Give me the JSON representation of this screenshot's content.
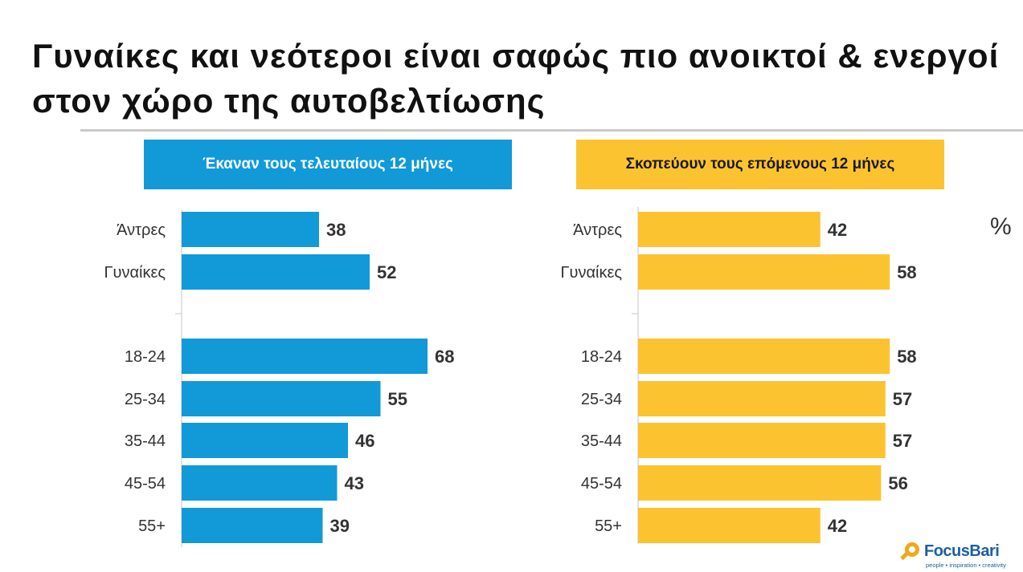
{
  "title": "Γυναίκες και νεότεροι είναι σαφώς πιο ανοικτοί & ενεργοί στον χώρο της αυτοβελτίωσης",
  "unit": "%",
  "logo": {
    "name": "FocusBari",
    "tagline": "people • inspiration • creativity"
  },
  "colors": {
    "left_bar": "#1299d8",
    "right_bar": "#fcc331",
    "text": "#333333"
  },
  "chart_data": [
    {
      "type": "bar",
      "orientation": "horizontal",
      "title": "Έκαναν τους τελευταίους 12 μήνες",
      "categories": [
        "Άντρες",
        "Γυναίκες",
        "",
        "18-24",
        "25-34",
        "35-44",
        "45-54",
        "55+"
      ],
      "values": [
        38,
        52,
        null,
        68,
        55,
        46,
        43,
        39
      ],
      "color": "#1299d8",
      "unit": "%"
    },
    {
      "type": "bar",
      "orientation": "horizontal",
      "title": "Σκοπεύουν τους επόμενους 12 μήνες",
      "categories": [
        "Άντρες",
        "Γυναίκες",
        "",
        "18-24",
        "25-34",
        "35-44",
        "45-54",
        "55+"
      ],
      "values": [
        42,
        58,
        null,
        58,
        57,
        57,
        56,
        42
      ],
      "color": "#fcc331",
      "unit": "%"
    }
  ]
}
